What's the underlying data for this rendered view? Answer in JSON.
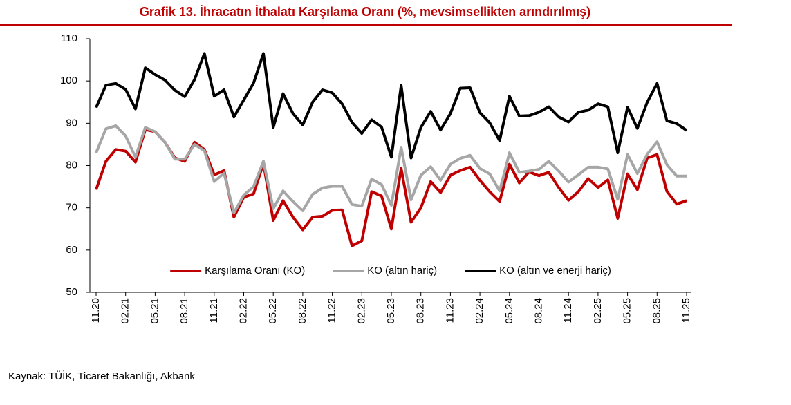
{
  "chart_data": {
    "type": "line",
    "title": "Grafik 13. İhracatın İthalatı Karşılama Oranı (%, mevsimsellikten arındırılmış)",
    "source": "Kaynak: TÜİK, Ticaret Bakanlığı, Akbank",
    "categories": [
      "11.20",
      null,
      null,
      "02.21",
      null,
      null,
      "05.21",
      null,
      null,
      "08.21",
      null,
      null,
      "11.21",
      null,
      null,
      "02.22",
      null,
      null,
      "05.22",
      null,
      null,
      "08.22",
      null,
      null,
      "11.22",
      null,
      null,
      "02.23",
      null,
      null,
      "05.23",
      null,
      null,
      "08.23",
      null,
      null,
      "11.23",
      null,
      null,
      "02.24",
      null,
      null,
      "05.24",
      null,
      null,
      "08.24",
      null,
      null,
      "11.24",
      null,
      null,
      "02.25",
      null,
      null,
      "05.25",
      null,
      null,
      "08.25",
      null,
      null,
      "11.25"
    ],
    "series": [
      {
        "name": "Karşılama Oranı (KO)",
        "color": "#c00000",
        "values": [
          74.3,
          81,
          83.8,
          83.4,
          80.8,
          88.5,
          88,
          85.5,
          81.8,
          81,
          85.5,
          83.8,
          77.8,
          78.8,
          67.8,
          72.5,
          73.3,
          80.5,
          67,
          71.7,
          67.8,
          64.8,
          67.8,
          68,
          69.4,
          69.5,
          61,
          62.2,
          73.8,
          72.8,
          65,
          79.3,
          66.6,
          70,
          76.2,
          73.6,
          77.7,
          78.8,
          79.6,
          76.5,
          73.8,
          71.5,
          80.3,
          75.9,
          78.5,
          77.6,
          78.4,
          74.8,
          71.8,
          73.8,
          76.9,
          74.8,
          76.6,
          67.5,
          78,
          74.3,
          81.8,
          82.6,
          73.9,
          70.9,
          71.7
        ]
      },
      {
        "name": "KO (altın hariç)",
        "color": "#a6a6a6",
        "values": [
          83,
          88.7,
          89.4,
          87,
          82,
          89,
          88,
          85.5,
          81.5,
          81.5,
          85,
          83.5,
          76.2,
          78.2,
          68.8,
          73,
          75,
          81,
          69.8,
          74,
          71.5,
          69.3,
          73.2,
          74.7,
          75.1,
          75.1,
          70.8,
          70.4,
          76.8,
          75.5,
          70.6,
          84.3,
          71.9,
          77.7,
          79.7,
          76.5,
          80.3,
          81.7,
          82.4,
          79.3,
          78,
          74,
          83,
          78.4,
          78.7,
          79.1,
          81,
          78.7,
          76.1,
          77.8,
          79.6,
          79.6,
          79.2,
          72,
          82.6,
          78.1,
          82.7,
          85.6,
          80.2,
          77.5,
          77.5
        ]
      },
      {
        "name": "KO (altın ve enerji hariç)",
        "color": "#000000",
        "values": [
          93.7,
          99,
          99.4,
          98,
          93.4,
          103.1,
          101.5,
          100.2,
          97.8,
          96.3,
          100.3,
          106.5,
          96.4,
          97.9,
          91.5,
          95.5,
          99.5,
          106.5,
          89,
          97,
          92.3,
          89.6,
          95,
          97.9,
          97.2,
          94.6,
          90.2,
          87.6,
          90.8,
          89.1,
          82,
          98.9,
          81.8,
          89,
          92.8,
          88.4,
          92.3,
          98.3,
          98.4,
          92.5,
          90.1,
          85.9,
          96.4,
          91.7,
          91.8,
          92.6,
          93.9,
          91.5,
          90.3,
          92.6,
          93.1,
          94.6,
          93.9,
          83,
          93.8,
          88.8,
          95,
          99.4,
          90.6,
          89.9,
          88.3
        ]
      }
    ],
    "ylim": [
      50,
      110
    ],
    "yticks": [
      50,
      60,
      70,
      80,
      90,
      100,
      110
    ],
    "grid": false,
    "legend": "lower center",
    "title_color": "#c00000"
  }
}
